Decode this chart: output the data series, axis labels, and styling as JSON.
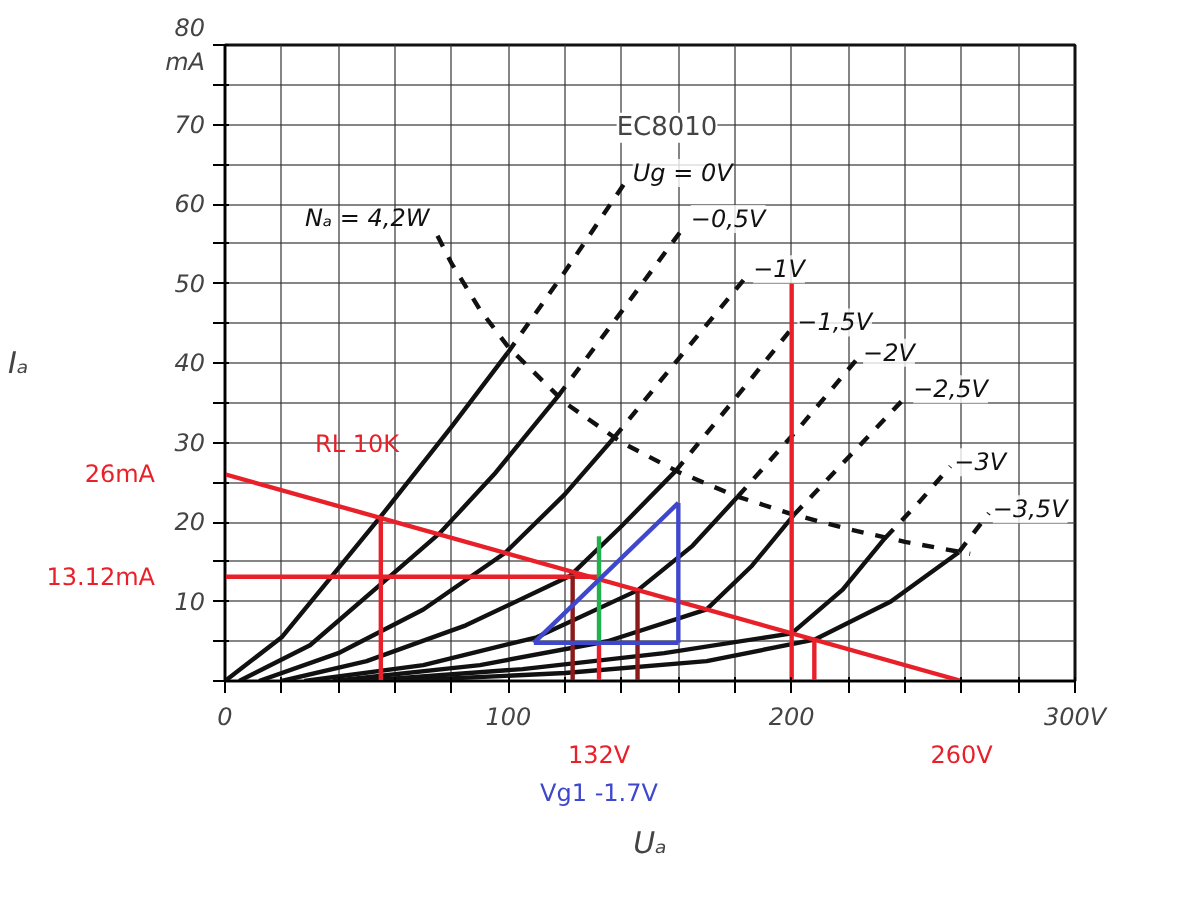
{
  "chart_data": {
    "type": "line",
    "xlabel": "Uₐ",
    "ylabel": "Iₐ",
    "xlim": [
      0,
      300
    ],
    "ylim": [
      0,
      80
    ],
    "xticks": [
      0,
      {
        "value": 20,
        "label": null
      },
      {
        "value": 40,
        "label": null
      },
      {
        "value": 60,
        "label": null
      },
      {
        "value": 80,
        "label": null
      },
      100,
      {
        "value": 120,
        "label": null
      },
      {
        "value": 140,
        "label": null
      },
      {
        "value": 160,
        "label": null
      },
      {
        "value": 180,
        "label": null
      },
      200,
      {
        "value": 220,
        "label": null
      },
      {
        "value": 240,
        "label": null
      },
      {
        "value": 260,
        "label": null
      },
      {
        "value": 280,
        "label": null
      },
      {
        "value": 300,
        "label": "300V"
      }
    ],
    "yticks": [
      {
        "value": 0,
        "label": null
      },
      {
        "value": 5,
        "label": null
      },
      10,
      {
        "value": 15,
        "label": null
      },
      20,
      {
        "value": 25,
        "label": null
      },
      30,
      {
        "value": 35,
        "label": null
      },
      40,
      {
        "value": 45,
        "label": null
      },
      50,
      {
        "value": 55,
        "label": null
      },
      60,
      {
        "value": 65,
        "label": null
      },
      70,
      {
        "value": 75,
        "label": null
      },
      {
        "value": 80,
        "label": "80\nmA"
      }
    ],
    "grid": true,
    "marker": "none",
    "series": [
      {
        "color": "#111111",
        "line_style": "solid",
        "x": [
          0,
          20,
          35,
          55,
          80,
          99.8
        ],
        "values": [
          0,
          5.5,
          12,
          20.7,
          32,
          41.3
        ]
      },
      {
        "name": "Ug = 0V",
        "color": "#111111",
        "line_style": "dashed",
        "x": [
          99.8,
          120,
          142.5
        ],
        "values": [
          41.3,
          51.5,
          63.4
        ]
      },
      {
        "color": "#111111",
        "line_style": "solid",
        "x": [
          5,
          30,
          58,
          75.8,
          95,
          117.5
        ],
        "values": [
          0,
          4.5,
          13.1,
          18.6,
          26,
          35.8
        ]
      },
      {
        "name": "−0,5V",
        "color": "#111111",
        "line_style": "dashed",
        "x": [
          117.5,
          140,
          163
        ],
        "values": [
          35.8,
          46.5,
          57.6
        ]
      },
      {
        "color": "#111111",
        "line_style": "solid",
        "x": [
          12,
          40,
          70,
          98.8,
          120,
          137.3
        ],
        "values": [
          0,
          3.5,
          9,
          16.1,
          23.5,
          30.6
        ]
      },
      {
        "name": "−1V",
        "color": "#111111",
        "line_style": "dashed",
        "x": [
          137.3,
          160,
          185
        ],
        "values": [
          30.6,
          40.5,
          51.3
        ]
      },
      {
        "color": "#111111",
        "line_style": "solid",
        "x": [
          20,
          50,
          85,
          121.7,
          140,
          159
        ],
        "values": [
          0,
          2.5,
          7,
          13.2,
          19.5,
          26.4
        ]
      },
      {
        "name": "−1,5V",
        "color": "#111111",
        "line_style": "dashed",
        "x": [
          159,
          180,
          200.6
        ],
        "values": [
          26.4,
          35.5,
          44.6
        ]
      },
      {
        "color": "#111111",
        "line_style": "solid",
        "x": [
          28,
          70,
          110,
          145.6,
          165,
          181
        ],
        "values": [
          0,
          2,
          5.5,
          11.4,
          17,
          23.2
        ]
      },
      {
        "name": "−2V",
        "color": "#111111",
        "line_style": "dashed",
        "x": [
          181,
          203,
          223.8
        ],
        "values": [
          23.2,
          32,
          40.8
        ]
      },
      {
        "color": "#111111",
        "line_style": "solid",
        "x": [
          38,
          90,
          135,
          170,
          186,
          200.8
        ],
        "values": [
          0,
          2,
          5,
          9,
          14.5,
          20.9
        ]
      },
      {
        "name": "−2,5V",
        "color": "#111111",
        "line_style": "dashed",
        "x": [
          200.8,
          221,
          241.5
        ],
        "values": [
          20.9,
          28.5,
          36.2
        ]
      },
      {
        "color": "#111111",
        "line_style": "solid",
        "x": [
          48,
          105,
          155,
          200,
          218,
          233
        ],
        "values": [
          0,
          1.5,
          3.5,
          6,
          11.5,
          18
        ]
      },
      {
        "name": "−3V",
        "color": "#111111",
        "line_style": "dashed",
        "x": [
          233,
          245,
          256
        ],
        "values": [
          18,
          22.5,
          27
        ]
      },
      {
        "color": "#111111",
        "line_style": "solid",
        "x": [
          60,
          120,
          170,
          208,
          235,
          259
        ],
        "values": [
          0,
          1,
          2.5,
          5.2,
          10,
          16.2
        ]
      },
      {
        "name": "−3,5V",
        "color": "#111111",
        "line_style": "dashed",
        "x": [
          259,
          269.6
        ],
        "values": [
          16.2,
          21.1
        ]
      },
      {
        "name": "Nₐ = 4,2W",
        "color": "#111111",
        "line_style": "dashed",
        "x": [
          75,
          80,
          90,
          100,
          120,
          140,
          160,
          180,
          200,
          220,
          240,
          263
        ],
        "values": [
          56,
          52.5,
          46.7,
          42,
          35,
          30,
          26.3,
          23.3,
          21,
          19.1,
          17.5,
          16
        ]
      },
      {
        "name": "RL 10K",
        "color": "#e8202a",
        "line_style": "solid",
        "x": [
          0,
          260
        ],
        "values": [
          26,
          0
        ]
      },
      {
        "color": "#e8202a",
        "line_style": "solid",
        "x": [
          0,
          132
        ],
        "values": [
          13.12,
          13.12
        ]
      },
      {
        "color": "#e8202a",
        "line_style": "solid",
        "x": [
          55,
          55
        ],
        "values": [
          0,
          20.5
        ]
      },
      {
        "color": "#8b1a1a",
        "line_style": "solid",
        "x": [
          122.7,
          122.7
        ],
        "values": [
          0,
          13.2
        ]
      },
      {
        "color": "#e8202a",
        "line_style": "solid",
        "x": [
          132,
          132
        ],
        "values": [
          0,
          4.8
        ]
      },
      {
        "color": "#22b14c",
        "line_style": "solid",
        "x": [
          132,
          132
        ],
        "values": [
          4.8,
          18.2
        ]
      },
      {
        "color": "#8b1a1a",
        "line_style": "solid",
        "x": [
          145.6,
          145.6
        ],
        "values": [
          0,
          11.3
        ]
      },
      {
        "color": "#e8202a",
        "line_style": "solid",
        "x": [
          200,
          200
        ],
        "values": [
          0,
          50
        ]
      },
      {
        "color": "#e8202a",
        "line_style": "solid",
        "x": [
          208,
          208
        ],
        "values": [
          0,
          5.2
        ]
      },
      {
        "color": "#3f48cc",
        "line_style": "solid",
        "x": [
          109,
          160
        ],
        "values": [
          4.8,
          22.4
        ]
      },
      {
        "color": "#3f48cc",
        "line_style": "solid",
        "x": [
          160,
          160
        ],
        "values": [
          4.8,
          22.4
        ]
      },
      {
        "color": "#3f48cc",
        "line_style": "solid",
        "x": [
          109,
          160
        ],
        "values": [
          4.8,
          4.8
        ]
      }
    ],
    "annotations": [
      "EC8010",
      {
        "text": "26mA",
        "x": 0,
        "y": 26
      },
      {
        "text": "13.12mA",
        "x": 0,
        "y": 13.12
      },
      {
        "text": "132V",
        "x": 132,
        "y": 0
      },
      {
        "text": "260V",
        "x": 260,
        "y": 0
      },
      "Vg1 -1.7V"
    ]
  }
}
